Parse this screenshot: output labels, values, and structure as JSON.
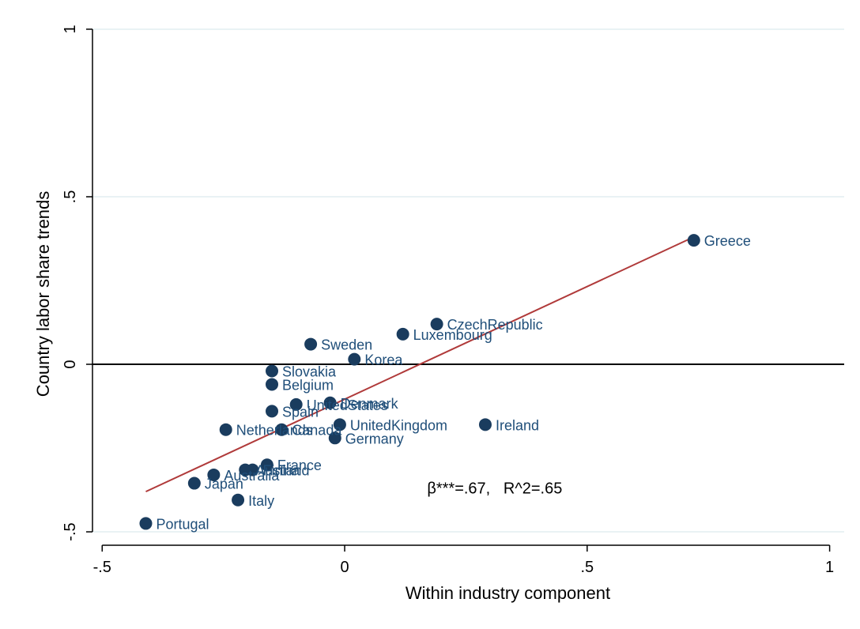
{
  "chart_data": {
    "type": "scatter",
    "xlabel": "Within industry component",
    "ylabel": "Country labor share trends",
    "xlim": [
      -0.52,
      1.03
    ],
    "ylim": [
      -0.54,
      1.04
    ],
    "x_ticks": [
      -0.5,
      0,
      0.5,
      1
    ],
    "x_tick_labels": [
      "-.5",
      "0",
      ".5",
      "1"
    ],
    "y_ticks": [
      -0.5,
      0,
      0.5,
      1
    ],
    "y_tick_labels": [
      "-.5",
      "0",
      ".5",
      "1"
    ],
    "grid": "horizontal",
    "zero_line": true,
    "colors": {
      "point": "#1a3c5e",
      "label": "#1f4e79",
      "fit": "#b03a3a",
      "grid": "#e2eef0",
      "axis": "#000000"
    },
    "points": [
      {
        "label": "Greece",
        "x": 0.72,
        "y": 0.37
      },
      {
        "label": "CzechRepublic",
        "x": 0.19,
        "y": 0.12
      },
      {
        "label": "Luxembourg",
        "x": 0.12,
        "y": 0.09
      },
      {
        "label": "Sweden",
        "x": -0.07,
        "y": 0.06
      },
      {
        "label": "Korea",
        "x": 0.02,
        "y": 0.015
      },
      {
        "label": "Slovakia",
        "x": -0.15,
        "y": -0.02
      },
      {
        "label": "Belgium",
        "x": -0.15,
        "y": -0.06
      },
      {
        "label": "UnitedStates",
        "x": -0.1,
        "y": -0.12
      },
      {
        "label": "Denmark",
        "x": -0.03,
        "y": -0.115
      },
      {
        "label": "Spain",
        "x": -0.15,
        "y": -0.14
      },
      {
        "label": "UnitedKingdom",
        "x": -0.01,
        "y": -0.18
      },
      {
        "label": "Ireland",
        "x": 0.29,
        "y": -0.18
      },
      {
        "label": "Netherlands",
        "x": -0.245,
        "y": -0.195
      },
      {
        "label": "Canada",
        "x": -0.13,
        "y": -0.195
      },
      {
        "label": "Germany",
        "x": -0.02,
        "y": -0.22
      },
      {
        "label": "France",
        "x": -0.16,
        "y": -0.3
      },
      {
        "label": "Finland",
        "x": -0.19,
        "y": -0.315
      },
      {
        "label": "Austria",
        "x": -0.205,
        "y": -0.315
      },
      {
        "label": "Australia",
        "x": -0.27,
        "y": -0.33
      },
      {
        "label": "Japan",
        "x": -0.31,
        "y": -0.355
      },
      {
        "label": "Italy",
        "x": -0.22,
        "y": -0.405
      },
      {
        "label": "Portugal",
        "x": -0.41,
        "y": -0.475
      }
    ],
    "fit_line": {
      "x": [
        -0.41,
        0.72
      ],
      "y": [
        -0.38,
        0.38
      ]
    },
    "annotation": "β***=.67,   R^2=.65",
    "annotation_position": {
      "x": 0.17,
      "y": -0.385
    }
  }
}
